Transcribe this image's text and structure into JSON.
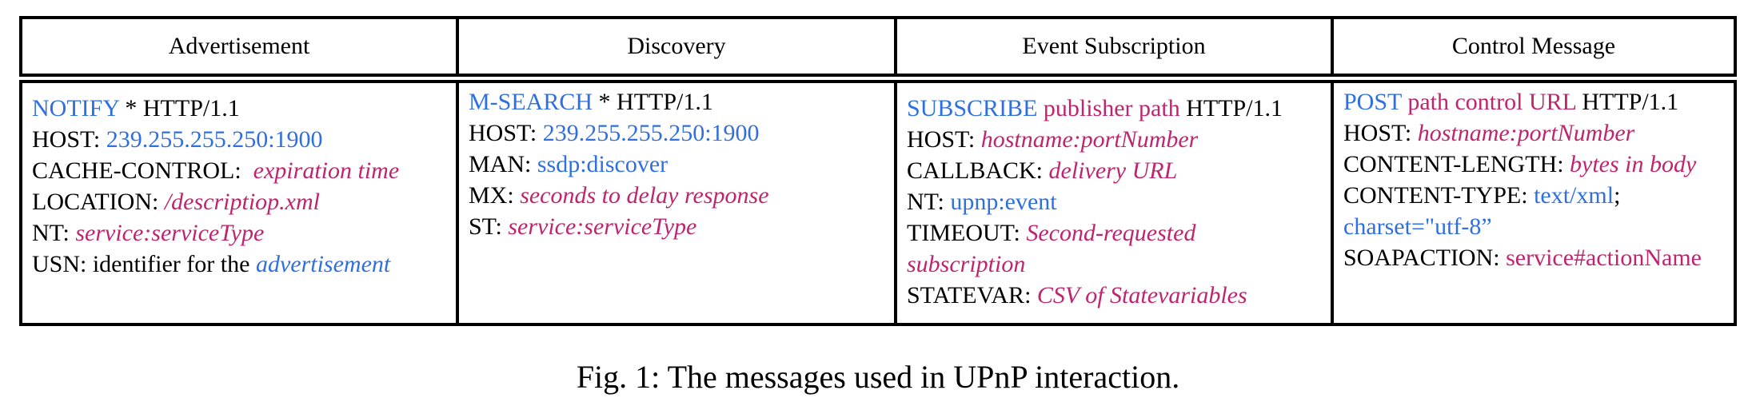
{
  "headers": [
    "Advertisement",
    "Discovery",
    "Event Subscription",
    "Control Message"
  ],
  "advertisement": {
    "l1_method": "NOTIFY",
    "l1_rest": " * HTTP/1.1",
    "l2_key": "HOST: ",
    "l2_val": "239.255.255.250:1900",
    "l3_key": "CACHE-CONTROL:  ",
    "l3_val": "expiration time",
    "l4_key": "LOCATION: ",
    "l4_val": "/descriptiop.xml",
    "l5_key": "NT: ",
    "l5_val": "service:serviceType",
    "l6_key": "USN: identifier for the ",
    "l6_val": "advertisement"
  },
  "discovery": {
    "l1_method": "M-SEARCH",
    "l1_rest": " * HTTP/1.1",
    "l2_key": "HOST: ",
    "l2_val": "239.255.255.250:1900",
    "l3_key": "MAN: ",
    "l3_val": "ssdp:discover",
    "l4_key": "MX: ",
    "l4_val": "seconds to delay response",
    "l5_key": "ST: ",
    "l5_val": "service:serviceType"
  },
  "event_subscription": {
    "l1_method": "SUBSCRIBE",
    "l1_path": " publisher path",
    "l1_rest": " HTTP/1.1",
    "l2_key": "HOST: ",
    "l2_val": "hostname:portNumber",
    "l3_key": "CALLBACK: ",
    "l3_val": "delivery URL",
    "l4_key": "NT: ",
    "l4_val": "upnp:event",
    "l5_key": "TIMEOUT: ",
    "l5_val": "Second-requested",
    "l6_val": "subscription",
    "l7_key": "STATEVAR: ",
    "l7_val": "CSV of Statevariables"
  },
  "control_message": {
    "l1_method": "POST",
    "l1_path": " path control URL",
    "l1_rest": " HTTP/1.1",
    "l2_key": "HOST: ",
    "l2_val": "hostname:portNumber",
    "l3_key": "CONTENT-LENGTH: ",
    "l3_val": "bytes in body",
    "l4_key": "CONTENT-TYPE: ",
    "l4_val": "text/xml",
    "l4_end": ";",
    "l5_val": "charset=\"utf-8”",
    "l6_key": "SOAPACTION: ",
    "l6_val": "service#actionName"
  },
  "caption": "Fig. 1: The messages used in UPnP interaction."
}
